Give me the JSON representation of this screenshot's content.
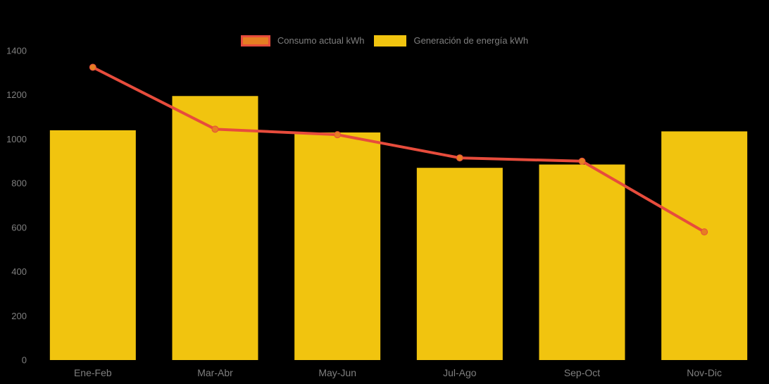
{
  "background_color": "#000000",
  "legend": {
    "position": "top-center",
    "items": [
      {
        "label": "Consumo actual kWh",
        "swatch": "line-marker"
      },
      {
        "label": "Generación de energía kWh",
        "swatch": "bar"
      }
    ]
  },
  "chart_data": {
    "type": "bar",
    "title": "",
    "xlabel": "",
    "ylabel": "",
    "categories": [
      "Ene-Feb",
      "Mar-Abr",
      "May-Jun",
      "Jul-Ago",
      "Sep-Oct",
      "Nov-Dic"
    ],
    "series": [
      {
        "name": "Consumo actual kWh",
        "type": "line",
        "values": [
          1325,
          1045,
          1020,
          915,
          900,
          580
        ],
        "color": "#e74c3c",
        "marker_color": "#e67e22"
      },
      {
        "name": "Generación de energía kWh",
        "type": "bar",
        "values": [
          1040,
          1195,
          1030,
          870,
          885,
          1035
        ],
        "color": "#f1c40f"
      }
    ],
    "ylim": [
      0,
      1400
    ],
    "y_ticks": [
      0,
      200,
      400,
      600,
      800,
      1000,
      1200,
      1400
    ],
    "grid": false,
    "legend_position": "top",
    "axis_text_color": "#7f7f7f"
  }
}
